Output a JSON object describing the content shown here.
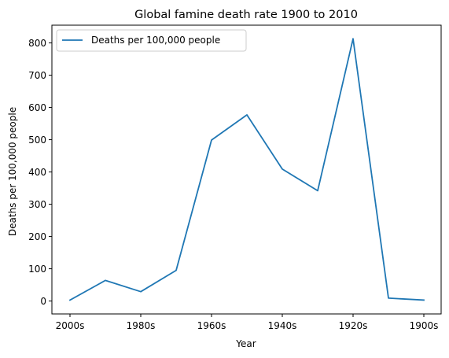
{
  "colors": {
    "series": "#1f77b4"
  },
  "chart_data": {
    "type": "line",
    "title": "Global famine death rate 1900 to 2010",
    "xlabel": "Year",
    "ylabel": "Deaths per 100,000 people",
    "x": [
      "2000s",
      "1990s",
      "1980s",
      "1970s",
      "1960s",
      "1950s",
      "1940s",
      "1930s",
      "1920s",
      "1910s",
      "1900s"
    ],
    "x_tick_labels": [
      "2000s",
      "1980s",
      "1960s",
      "1940s",
      "1920s",
      "1900s"
    ],
    "x_tick_indices": [
      0,
      2,
      4,
      6,
      8,
      10
    ],
    "y_ticks": [
      0,
      100,
      200,
      300,
      400,
      500,
      600,
      700,
      800
    ],
    "y_tick_labels": [
      "0",
      "100",
      "200",
      "300",
      "400",
      "500",
      "600",
      "700",
      "800"
    ],
    "ylim": [
      -40,
      855
    ],
    "series": [
      {
        "name": "Deaths per 100,000 people",
        "values": [
          3,
          64,
          29,
          95,
          499,
          577,
          409,
          342,
          813,
          9,
          3
        ]
      }
    ],
    "legend": "top-left",
    "grid": false
  }
}
